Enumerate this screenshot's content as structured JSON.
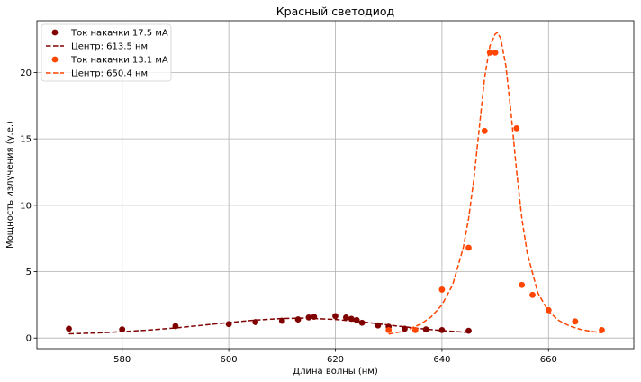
{
  "chart_data": {
    "type": "scatter",
    "title": "Красный светодиод",
    "xlabel": "Длина волны (нм)",
    "ylabel": "Мощность излучения (у.е.)",
    "xlim": [
      564,
      676
    ],
    "ylim": [
      -0.8,
      23.9
    ],
    "xticks": [
      580,
      600,
      620,
      640,
      660
    ],
    "yticks": [
      0,
      5,
      10,
      15,
      20
    ],
    "grid": true,
    "legend_position": "top-left",
    "series": [
      {
        "name": "Ток накачки 17.5 мА",
        "kind": "scatter",
        "color": "#800000",
        "x": [
          570,
          580,
          590,
          600,
          605,
          610,
          613,
          615,
          616,
          620,
          622,
          623,
          624,
          625,
          628,
          630,
          633,
          637,
          640,
          645
        ],
        "y": [
          0.7,
          0.65,
          0.9,
          1.05,
          1.2,
          1.3,
          1.4,
          1.55,
          1.6,
          1.65,
          1.55,
          1.45,
          1.35,
          1.15,
          0.95,
          0.85,
          0.7,
          0.65,
          0.6,
          0.55
        ]
      },
      {
        "name": "Центр: 613.5 нм",
        "kind": "line",
        "color": "#800000",
        "x": [
          570,
          575,
          580,
          585,
          590,
          595,
          600,
          605,
          610,
          613.5,
          615,
          620,
          625,
          630,
          635,
          640,
          645
        ],
        "y": [
          0.32,
          0.38,
          0.48,
          0.6,
          0.76,
          0.96,
          1.17,
          1.35,
          1.47,
          1.5,
          1.49,
          1.4,
          1.22,
          0.98,
          0.75,
          0.56,
          0.42
        ]
      },
      {
        "name": "Ток накачки 13.1 мА",
        "kind": "scatter",
        "color": "#ff4500",
        "x": [
          630,
          635,
          640,
          645,
          648,
          649,
          650,
          654,
          655,
          657,
          660,
          665,
          670
        ],
        "y": [
          0.6,
          0.6,
          3.65,
          6.8,
          15.6,
          21.5,
          21.5,
          15.8,
          4.0,
          3.25,
          2.1,
          1.25,
          0.6
        ]
      },
      {
        "name": "Центр: 650.4 нм",
        "kind": "line",
        "color": "#ff4500",
        "x": [
          630,
          632,
          634,
          636,
          638,
          640,
          642,
          644,
          645,
          646,
          647,
          648,
          649,
          650,
          650.4,
          651,
          652,
          653,
          654,
          655,
          656,
          658,
          660,
          662,
          664,
          666,
          668,
          670
        ],
        "y": [
          0.3,
          0.45,
          0.7,
          1.05,
          1.6,
          2.5,
          4.0,
          6.8,
          9.0,
          12.0,
          15.8,
          19.6,
          22.0,
          22.9,
          23.0,
          22.6,
          20.5,
          16.8,
          12.6,
          9.0,
          6.4,
          3.4,
          2.0,
          1.3,
          0.9,
          0.65,
          0.5,
          0.4
        ]
      }
    ]
  }
}
